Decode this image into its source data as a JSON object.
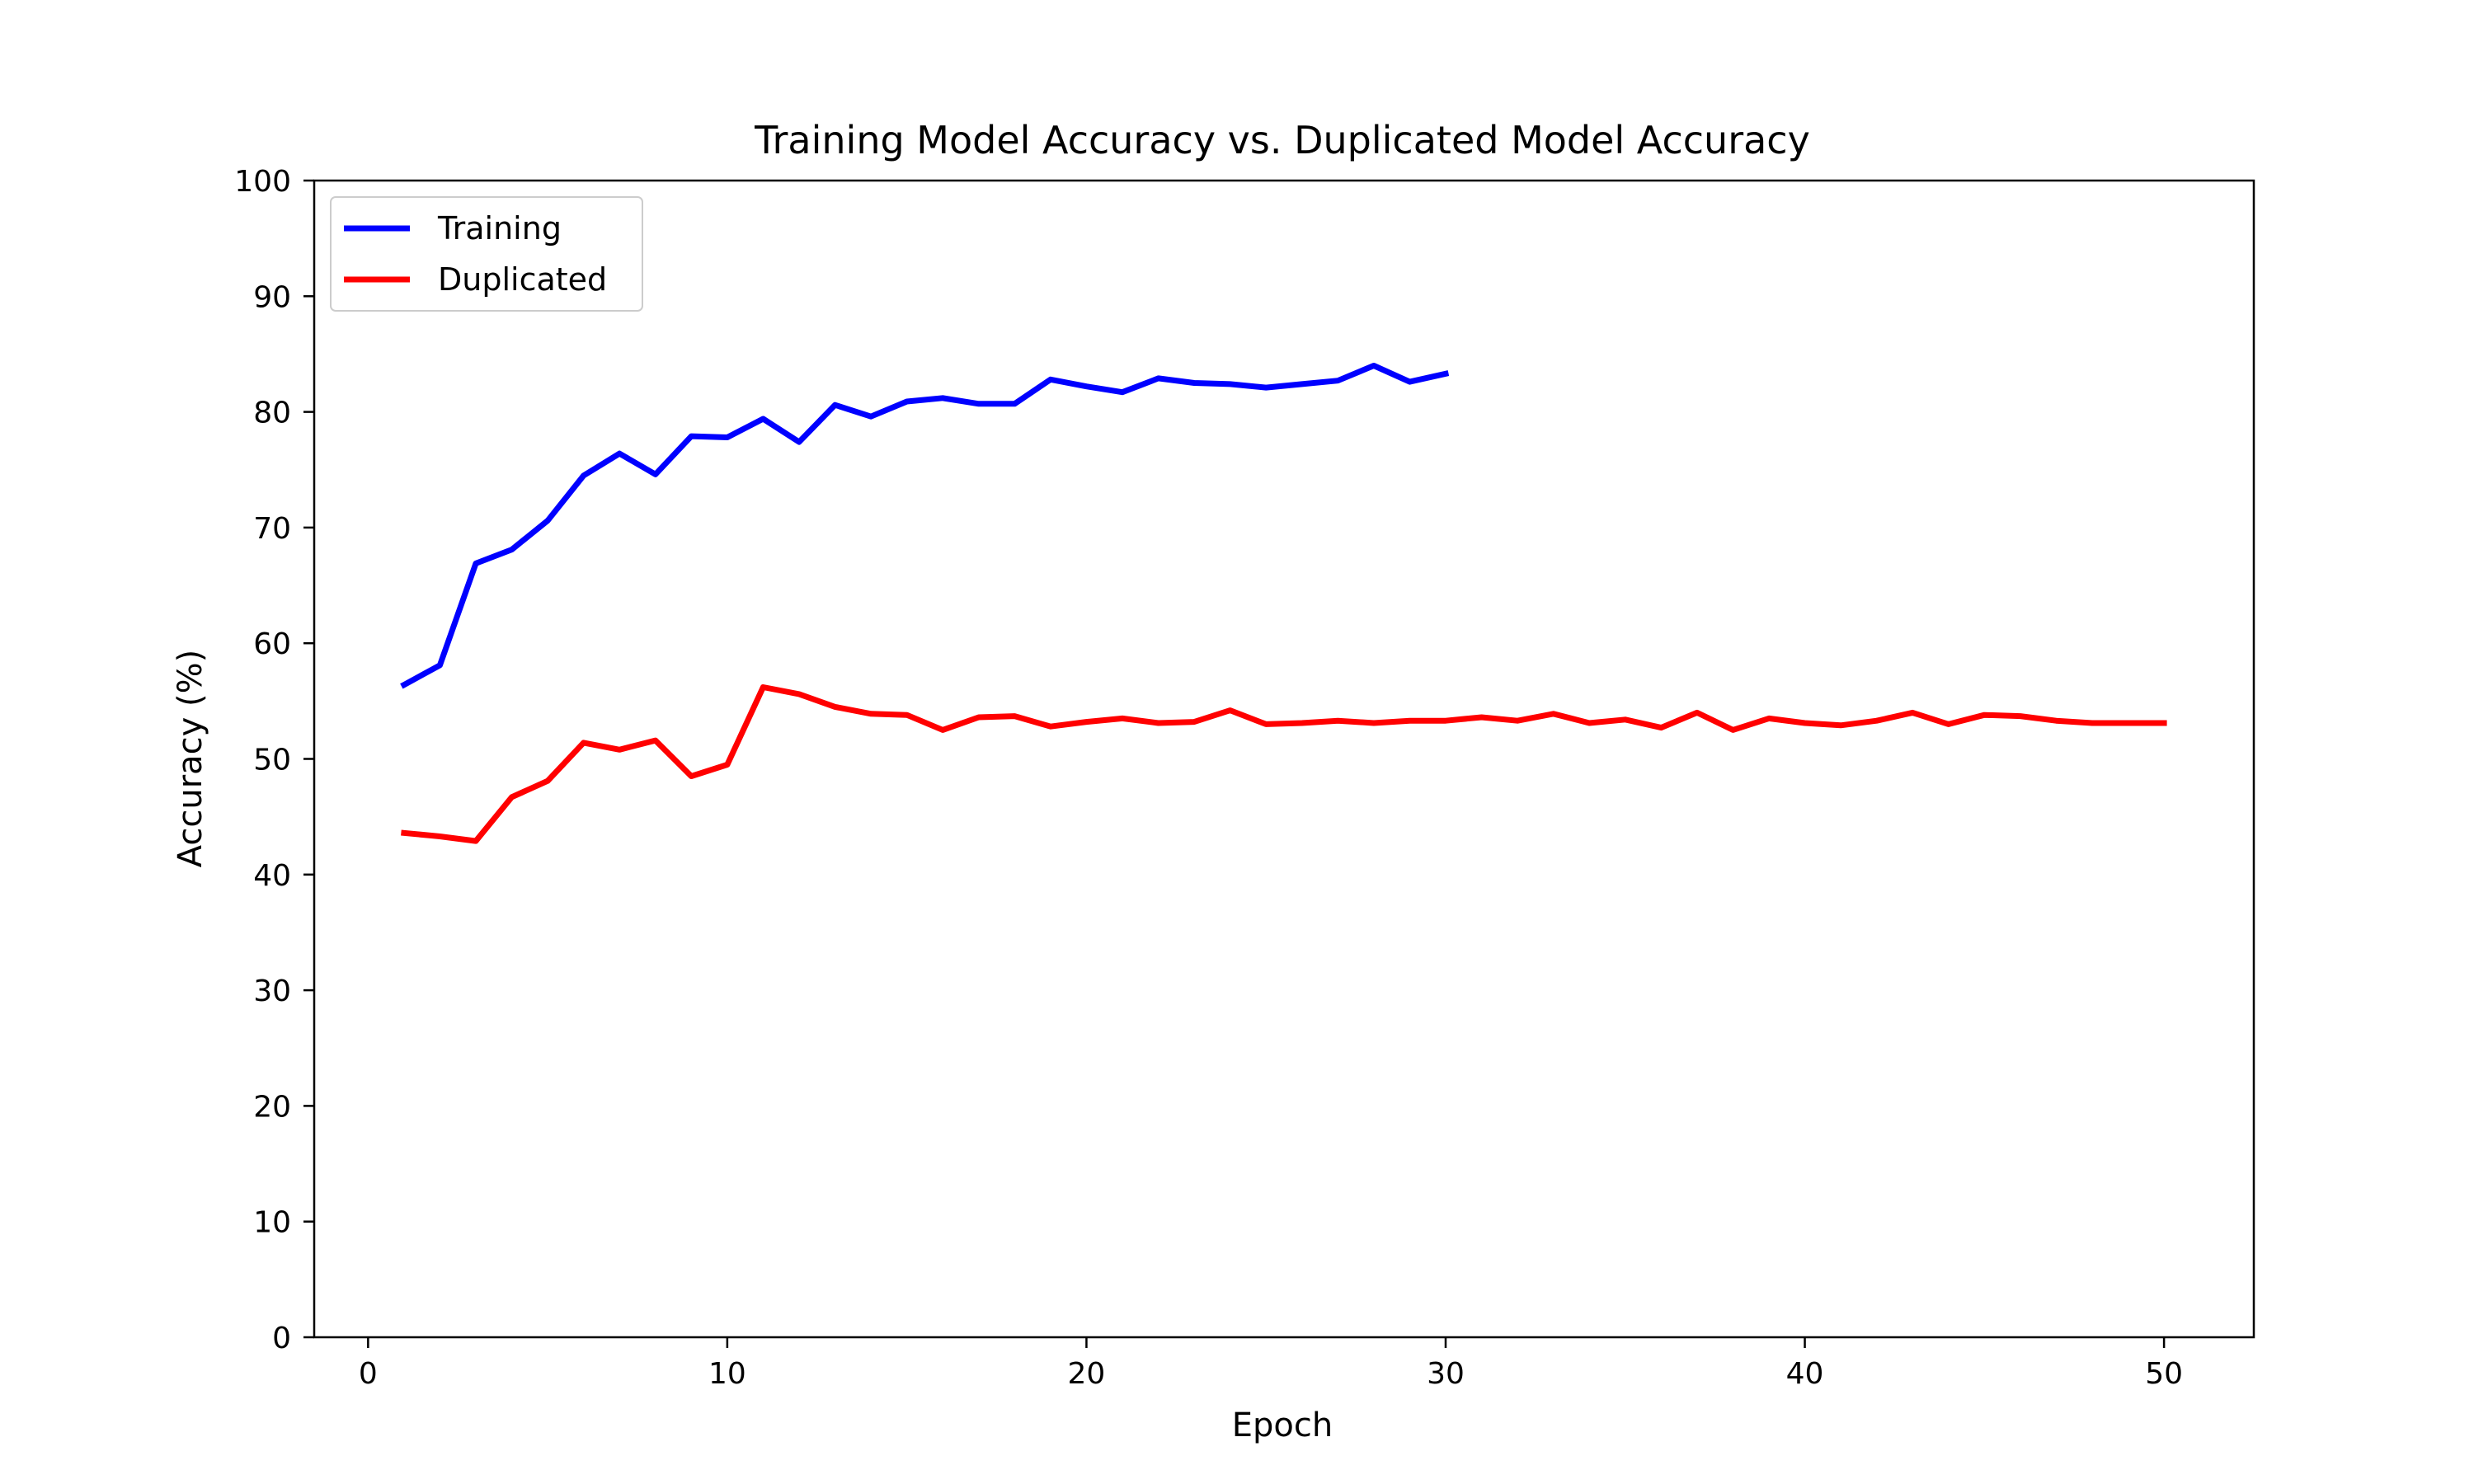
{
  "chart_data": {
    "type": "line",
    "title": "Training Model Accuracy vs. Duplicated Model Accuracy",
    "xlabel": "Epoch",
    "ylabel": "Accuracy (%)",
    "xlim": [
      -1.5,
      52.5
    ],
    "ylim": [
      0,
      100
    ],
    "xticks": [
      0,
      10,
      20,
      30,
      40,
      50
    ],
    "yticks": [
      0,
      10,
      20,
      30,
      40,
      50,
      60,
      70,
      80,
      90,
      100
    ],
    "grid": false,
    "legend_position": "top-left",
    "series": [
      {
        "name": "Training",
        "color": "#0000ff",
        "x": [
          1,
          2,
          3,
          4,
          5,
          6,
          7,
          8,
          9,
          10,
          11,
          12,
          13,
          14,
          15,
          16,
          17,
          18,
          19,
          20,
          21,
          22,
          23,
          24,
          25,
          26,
          27,
          28,
          29,
          30
        ],
        "values": [
          56.4,
          58.1,
          66.9,
          68.1,
          70.6,
          74.5,
          76.4,
          74.6,
          77.9,
          77.8,
          79.4,
          77.4,
          80.6,
          79.6,
          80.9,
          81.2,
          80.7,
          80.7,
          82.8,
          82.2,
          81.7,
          82.9,
          82.5,
          82.4,
          82.1,
          82.4,
          82.7,
          84.0,
          82.6,
          83.3
        ]
      },
      {
        "name": "Duplicated",
        "color": "#ff0000",
        "x": [
          1,
          2,
          3,
          4,
          5,
          6,
          7,
          8,
          9,
          10,
          11,
          12,
          13,
          14,
          15,
          16,
          17,
          18,
          19,
          20,
          21,
          22,
          23,
          24,
          25,
          26,
          27,
          28,
          29,
          30,
          31,
          32,
          33,
          34,
          35,
          36,
          37,
          38,
          39,
          40,
          41,
          42,
          43,
          44,
          45,
          46,
          47,
          48,
          49,
          50
        ],
        "values": [
          43.6,
          43.3,
          42.9,
          46.7,
          48.1,
          51.4,
          50.8,
          51.6,
          48.5,
          49.5,
          56.2,
          55.6,
          54.5,
          53.9,
          53.8,
          52.5,
          53.6,
          53.7,
          52.8,
          53.2,
          53.5,
          53.1,
          53.2,
          54.2,
          53.0,
          53.1,
          53.3,
          53.1,
          53.3,
          53.3,
          53.6,
          53.3,
          53.9,
          53.1,
          53.4,
          52.7,
          54.0,
          52.5,
          53.5,
          53.1,
          52.9,
          53.3,
          54.0,
          53.0,
          53.8,
          53.7,
          53.3,
          53.1,
          53.1,
          53.1
        ]
      }
    ]
  }
}
